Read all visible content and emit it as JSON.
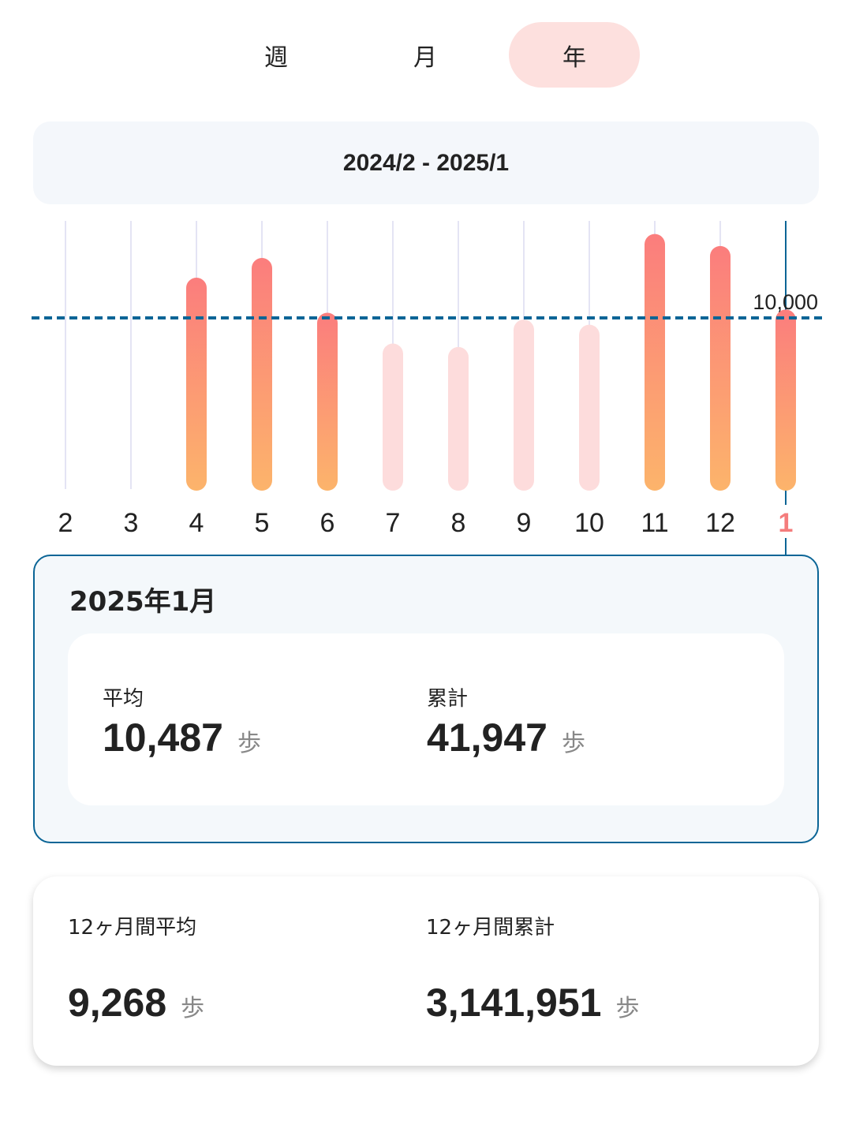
{
  "tabs": [
    {
      "label": "週",
      "active": false
    },
    {
      "label": "月",
      "active": false
    },
    {
      "label": "年",
      "active": true
    }
  ],
  "range_label": "2024/2 - 2025/1",
  "colors": {
    "bar_top": "#fb7d7d",
    "bar_bottom": "#fcb46b",
    "bar_below_goal": "#fddcdc",
    "goal_line": "#0b6596",
    "selected_label": "#f47c7c",
    "grid": "#e4e4f4"
  },
  "chart_data": {
    "type": "bar",
    "categories": [
      "2",
      "3",
      "4",
      "5",
      "6",
      "7",
      "8",
      "9",
      "10",
      "11",
      "12",
      "1"
    ],
    "values": [
      null,
      null,
      12350,
      13500,
      10300,
      8500,
      8300,
      9900,
      9600,
      14900,
      14200,
      10487
    ],
    "goal": {
      "value": 10000,
      "label": "10,000"
    },
    "selected_index": 11
  },
  "detail": {
    "title": "2025年1月",
    "average": {
      "label": "平均",
      "value": "10,487",
      "unit": "歩"
    },
    "total": {
      "label": "累計",
      "value": "41,947",
      "unit": "歩"
    }
  },
  "summary": {
    "average": {
      "label": "12ヶ月間平均",
      "value": "9,268",
      "unit": "歩"
    },
    "total": {
      "label": "12ヶ月間累計",
      "value": "3,141,951",
      "unit": "歩"
    }
  }
}
